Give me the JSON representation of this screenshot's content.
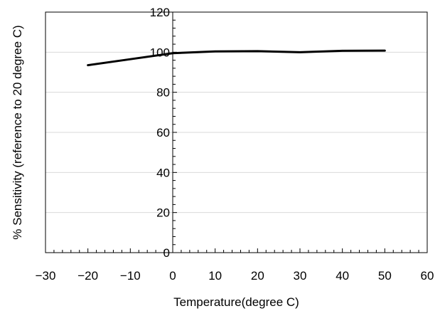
{
  "chart_data": {
    "type": "line",
    "title": "",
    "xlabel": "Temperature(degree C)",
    "ylabel": "% Sensitivity (reference to 20 degree C)",
    "xlim": [
      -30,
      60
    ],
    "ylim": [
      0,
      120
    ],
    "x_ticks": [
      -30,
      -20,
      -10,
      0,
      10,
      20,
      30,
      40,
      50,
      60
    ],
    "y_ticks": [
      0,
      20,
      40,
      60,
      80,
      100,
      120
    ],
    "x_tick_labels": [
      "−30",
      "−20",
      "−10",
      "0",
      "10",
      "20",
      "30",
      "40",
      "50",
      "60"
    ],
    "y_tick_labels": [
      "0",
      "20",
      "40",
      "60",
      "80",
      "100",
      "120"
    ],
    "grid": "horizontal",
    "legend": "none",
    "series": [
      {
        "x": [
          -20,
          -10,
          0,
          10,
          20,
          30,
          40,
          50
        ],
        "y": [
          93.5,
          96.5,
          99.5,
          100.4,
          100.5,
          100.0,
          100.7,
          100.8
        ],
        "color": "#000000"
      }
    ]
  }
}
